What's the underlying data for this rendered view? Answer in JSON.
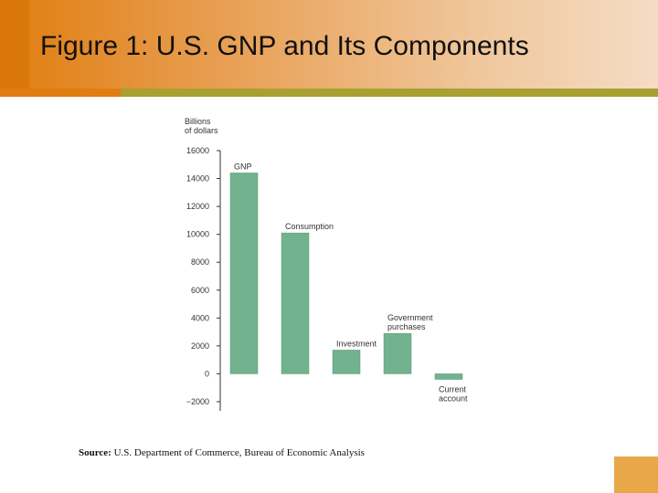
{
  "slide": {
    "title": "Figure 1: U.S. GNP and Its Components",
    "source_label": "Source:",
    "source_text": "U.S. Department of Commerce, Bureau of Economic Analysis"
  },
  "colors": {
    "bar": "#72b28e",
    "bar_stroke": "#5a9a76",
    "axis": "#333333",
    "header_orange": "#e07d10",
    "accent_olive": "#a8a030"
  },
  "chart_data": {
    "type": "bar",
    "ylabel": [
      "Billions",
      "of dollars"
    ],
    "categories": [
      "GNP",
      "Consumption",
      "Investment",
      "Government purchases",
      "Current account"
    ],
    "category_label_lines": [
      [
        "GNP"
      ],
      [
        "Consumption"
      ],
      [
        "Investment"
      ],
      [
        "Government",
        "purchases"
      ],
      [
        "Current",
        "account"
      ]
    ],
    "values": [
      14400,
      10100,
      1700,
      2900,
      -400
    ],
    "ylim": [
      -2000,
      16000
    ],
    "yticks": [
      16000,
      14000,
      12000,
      10000,
      8000,
      6000,
      4000,
      2000,
      0,
      -2000
    ],
    "ytick_labels": [
      "16000",
      "14000",
      "12000",
      "10000",
      "8000",
      "6000",
      "4000",
      "2000",
      "0",
      "−2000"
    ],
    "grid": false,
    "legend": "none"
  }
}
